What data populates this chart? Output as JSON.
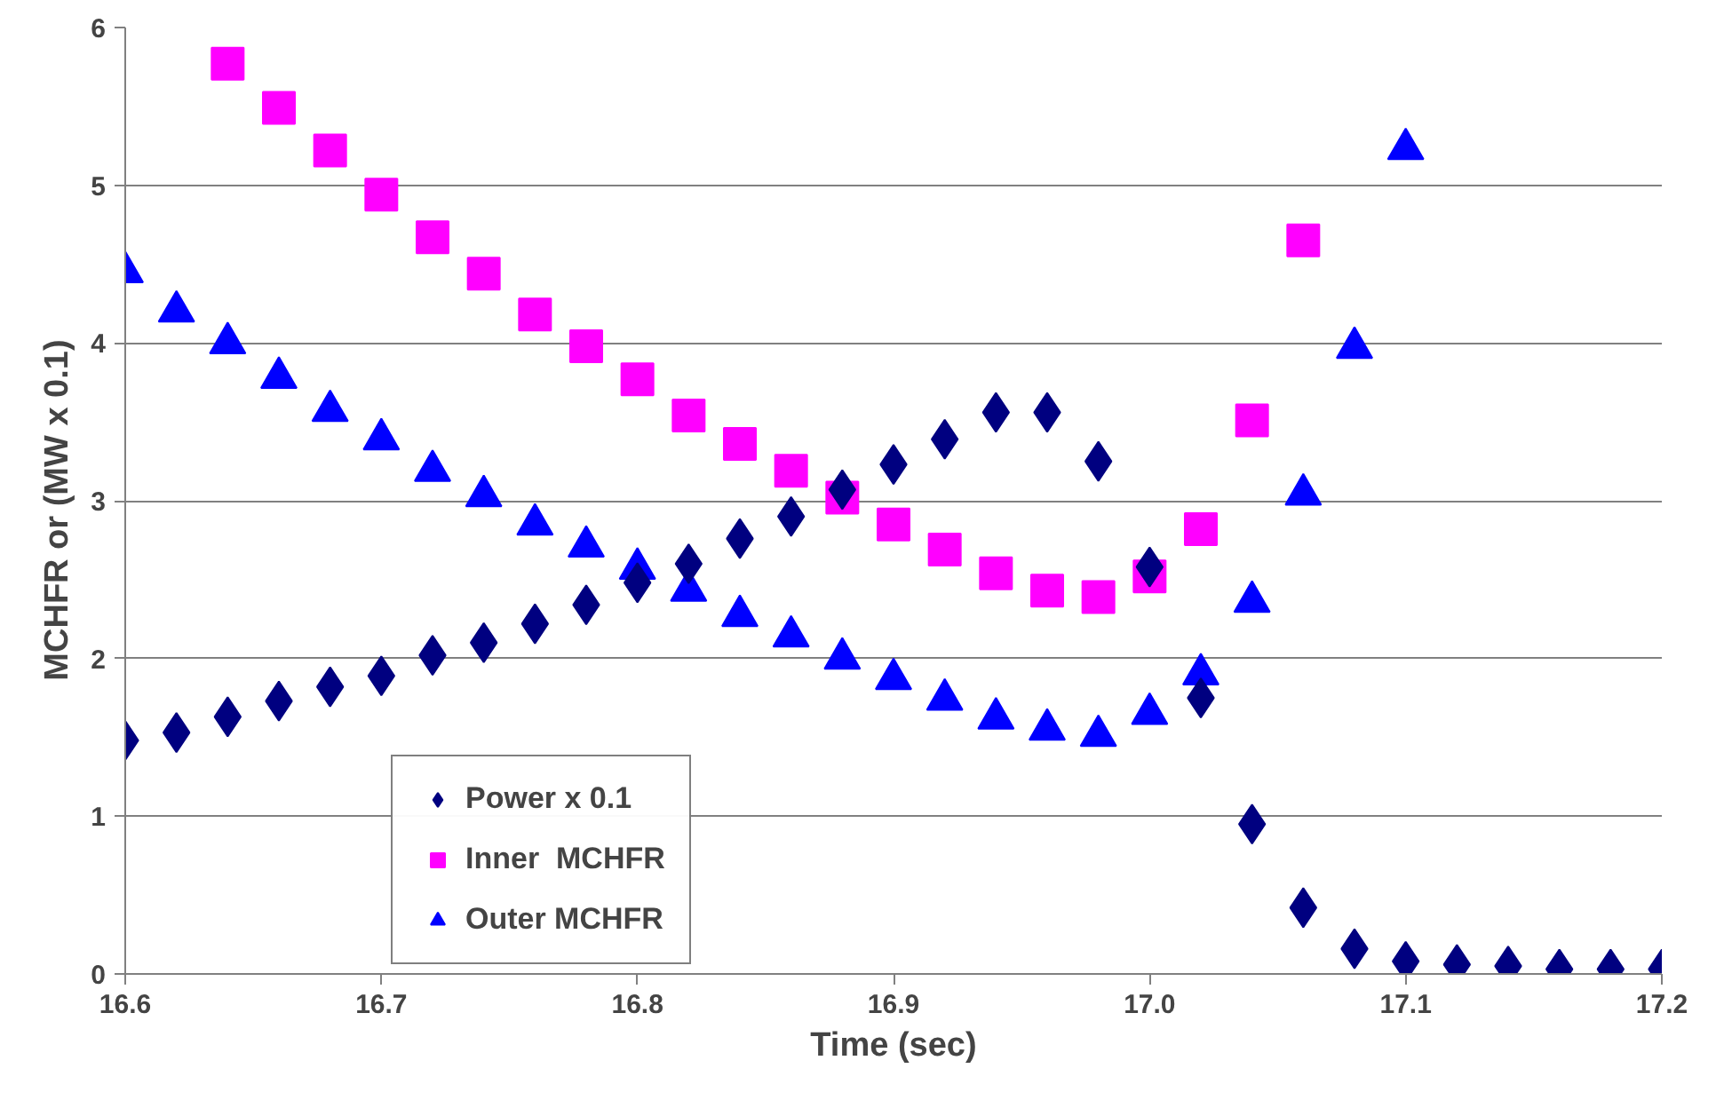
{
  "chart_data": {
    "type": "scatter",
    "xlabel": "Time (sec)",
    "ylabel": "MCHFR  or  (MW x 0.1)",
    "xlim": [
      16.6,
      17.2
    ],
    "xticks": [
      16.6,
      16.7,
      16.8,
      16.9,
      {
        "value": 17.0,
        "label": "17.0"
      },
      17.1,
      17.2
    ],
    "ylim": [
      0,
      6
    ],
    "yticks": [
      0,
      1,
      2,
      3,
      4,
      5,
      6
    ],
    "grid": "y",
    "legend": "bottom left",
    "series": [
      {
        "name": "Power x 0.1",
        "color": "#000080",
        "marker": "diamond",
        "x": [
          16.6,
          16.62,
          16.64,
          16.66,
          16.68,
          16.7,
          16.72,
          16.74,
          16.76,
          16.78,
          16.8,
          16.82,
          16.84,
          16.86,
          16.88,
          16.9,
          16.92,
          16.94,
          16.96,
          16.98,
          17.0,
          17.02,
          17.04,
          17.06,
          17.08,
          17.1,
          17.12,
          17.14,
          17.16,
          17.18,
          17.2
        ],
        "values": [
          1.48,
          1.53,
          1.63,
          1.73,
          1.82,
          1.89,
          2.02,
          2.1,
          2.22,
          2.34,
          2.48,
          2.6,
          2.76,
          2.9,
          3.07,
          3.23,
          3.39,
          3.56,
          3.56,
          3.25,
          2.58,
          1.75,
          0.95,
          0.42,
          0.16,
          0.08,
          0.06,
          0.05,
          0.03,
          0.03,
          0.03
        ]
      },
      {
        "name": "Inner  MCHFR",
        "color": "#ff00ff",
        "marker": "square",
        "x": [
          16.64,
          16.66,
          16.68,
          16.7,
          16.72,
          16.74,
          16.76,
          16.78,
          16.8,
          16.82,
          16.84,
          16.86,
          16.88,
          16.9,
          16.92,
          16.94,
          16.96,
          16.98,
          17.0,
          17.02,
          17.04,
          17.06
        ],
        "values": [
          5.77,
          5.49,
          5.22,
          4.94,
          4.67,
          4.44,
          4.18,
          3.98,
          3.77,
          3.54,
          3.36,
          3.19,
          3.02,
          2.85,
          2.69,
          2.54,
          2.43,
          2.39,
          2.52,
          2.82,
          3.51,
          4.65
        ]
      },
      {
        "name": "Outer MCHFR",
        "color": "#0000ff",
        "marker": "triangle",
        "x": [
          16.6,
          16.62,
          16.64,
          16.66,
          16.68,
          16.7,
          16.72,
          16.74,
          16.76,
          16.78,
          16.8,
          16.82,
          16.84,
          16.86,
          16.88,
          16.9,
          16.92,
          16.94,
          16.96,
          16.98,
          17.0,
          17.02,
          17.04,
          17.06,
          17.08,
          17.1
        ],
        "values": [
          4.45,
          4.2,
          4.0,
          3.78,
          3.57,
          3.39,
          3.19,
          3.03,
          2.85,
          2.71,
          2.57,
          2.43,
          2.27,
          2.14,
          2.0,
          1.87,
          1.74,
          1.62,
          1.55,
          1.51,
          1.65,
          1.9,
          2.36,
          3.04,
          3.97,
          5.23
        ]
      }
    ]
  }
}
